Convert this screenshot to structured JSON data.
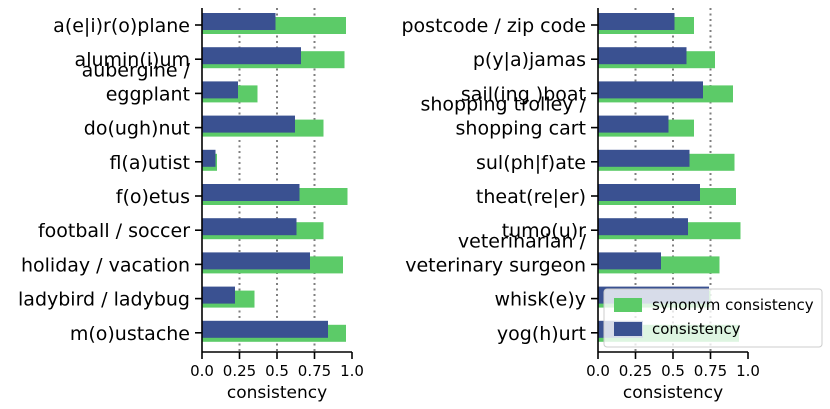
{
  "colors": {
    "synonym": "#5ccb68",
    "consistency": "#3a5191",
    "guide": "#7f7f7f"
  },
  "chart_data": [
    {
      "type": "bar",
      "orientation": "horizontal",
      "categories": [
        "a(e|i)r(o)plane",
        "alumin(i)um",
        "aubergine /\neggplant",
        "do(ugh)nut",
        "fl(a)utist",
        "f(o)etus",
        "football / soccer",
        "holiday / vacation",
        "ladybird / ladybug",
        "m(o)ustache"
      ],
      "series": [
        {
          "name": "synonym consistency",
          "values": [
            0.96,
            0.95,
            0.37,
            0.81,
            0.1,
            0.97,
            0.81,
            0.94,
            0.35,
            0.96
          ]
        },
        {
          "name": "consistency",
          "values": [
            0.49,
            0.66,
            0.24,
            0.62,
            0.09,
            0.65,
            0.63,
            0.72,
            0.22,
            0.84
          ]
        }
      ],
      "xlabel": "consistency",
      "xlim": [
        0,
        1
      ],
      "xticks": [
        "0.0",
        "0.25",
        "0.5",
        "0.75",
        "1.0"
      ],
      "guides": [
        0.25,
        0.5,
        0.75
      ]
    },
    {
      "type": "bar",
      "orientation": "horizontal",
      "categories": [
        "postcode / zip code",
        "p(y|a)jamas",
        "sail(ing )boat",
        "shopping trolley /\nshopping cart",
        "sul(ph|f)ate",
        "theat(re|er)",
        "tumo(u)r",
        "veterinarian /\nveterinary surgeon",
        "whisk(e)y",
        "yog(h)urt"
      ],
      "series": [
        {
          "name": "synonym consistency",
          "values": [
            0.64,
            0.78,
            0.9,
            0.64,
            0.91,
            0.92,
            0.95,
            0.81,
            0.75,
            0.94
          ]
        },
        {
          "name": "consistency",
          "values": [
            0.51,
            0.59,
            0.7,
            0.47,
            0.61,
            0.68,
            0.6,
            0.42,
            0.74,
            0.3
          ]
        }
      ],
      "xlabel": "consistency",
      "xlim": [
        0,
        1
      ],
      "xticks": [
        "0.0",
        "0.25",
        "0.5",
        "0.75",
        "1.0"
      ],
      "guides": [
        0.25,
        0.5,
        0.75
      ],
      "legend": {
        "placement": "lower-right",
        "entries": [
          "synonym consistency",
          "consistency"
        ]
      }
    }
  ]
}
